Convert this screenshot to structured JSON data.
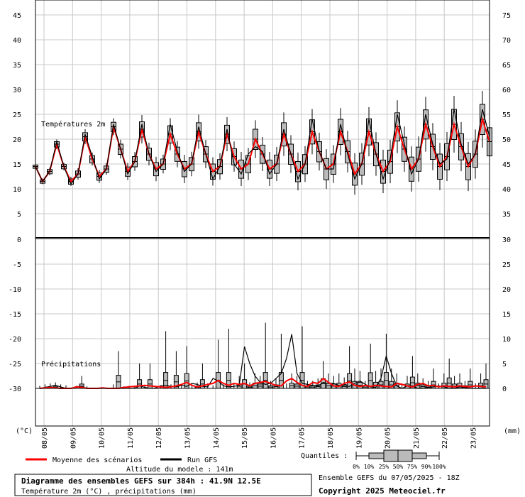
{
  "chart_data": [
    {
      "type": "box",
      "panel": "temperature",
      "label": "Températures 2m",
      "y_left_ticks": [
        5,
        10,
        15,
        20,
        25,
        30,
        35,
        40,
        45
      ],
      "y_right_ticks": [
        35,
        40,
        45,
        50,
        55,
        60,
        65,
        70,
        75
      ],
      "ylim_left": [
        0,
        47
      ],
      "mean_series_color": "#ff0000",
      "gfs_series_color": "#000000",
      "x_step_hours": 6,
      "mean": [
        14.5,
        11.5,
        13.5,
        19.0,
        14.5,
        11.5,
        13.0,
        20.5,
        16.0,
        12.5,
        14.0,
        22.5,
        18.0,
        13.5,
        15.5,
        22.0,
        17.0,
        14.0,
        15.0,
        21.0,
        17.0,
        14.0,
        15.0,
        21.5,
        17.0,
        13.5,
        14.5,
        21.0,
        16.5,
        14.0,
        15.0,
        20.0,
        17.0,
        14.0,
        15.0,
        21.0,
        17.0,
        13.5,
        15.0,
        21.5,
        17.5,
        14.0,
        15.0,
        21.5,
        17.5,
        13.0,
        15.0,
        21.5,
        17.0,
        13.5,
        15.5,
        22.5,
        18.0,
        14.0,
        16.0,
        23.0,
        18.5,
        14.5,
        16.5,
        23.0,
        18.5,
        14.5,
        17.0,
        24.0,
        19.5
      ],
      "gfs": [
        14.5,
        11.5,
        13.5,
        19.5,
        14.5,
        11.0,
        13.0,
        21.0,
        16.5,
        12.0,
        14.0,
        23.0,
        18.0,
        13.0,
        15.5,
        23.0,
        17.0,
        13.5,
        15.0,
        23.0,
        17.5,
        13.5,
        15.0,
        22.5,
        17.0,
        12.0,
        14.5,
        22.0,
        15.0,
        13.0,
        17.0,
        18.5,
        17.5,
        13.0,
        15.0,
        22.0,
        17.0,
        12.0,
        15.0,
        24.0,
        17.5,
        14.0,
        14.0,
        23.0,
        17.0,
        12.0,
        15.0,
        24.0,
        17.0,
        12.0,
        16.0,
        25.0,
        19.0,
        13.0,
        16.0,
        25.0,
        19.0,
        15.0,
        16.0,
        26.0,
        19.0,
        15.0,
        17.0,
        26.0,
        20.5
      ],
      "box_half_range": [
        0.3,
        0.3,
        0.4,
        0.5,
        0.4,
        0.5,
        0.6,
        0.8,
        0.7,
        0.7,
        0.6,
        0.9,
        1.0,
        0.9,
        1.0,
        1.5,
        1.2,
        1.3,
        1.0,
        1.7,
        1.4,
        1.5,
        1.3,
        1.8,
        1.5,
        1.5,
        1.4,
        1.8,
        1.6,
        1.8,
        1.7,
        2.0,
        1.8,
        1.8,
        1.8,
        2.3,
        2.0,
        2.0,
        1.9,
        2.4,
        2.0,
        2.1,
        2.0,
        2.5,
        2.2,
        2.2,
        2.2,
        2.6,
        2.3,
        2.3,
        2.3,
        2.8,
        2.4,
        2.4,
        2.4,
        2.9,
        2.5,
        2.5,
        2.6,
        3.0,
        2.6,
        2.6,
        2.6,
        3.0,
        2.8
      ]
    },
    {
      "type": "box",
      "panel": "precipitation",
      "label": "Précipitations",
      "y_left_ticks": [
        0,
        -5,
        -10,
        -15,
        -20,
        -25,
        -30
      ],
      "y_right_ticks": [
        30,
        25,
        20,
        15,
        10,
        5,
        0
      ],
      "ylim_right": [
        -7,
        30
      ],
      "mean_series_color": "#ff0000",
      "gfs_series_color": "#000000",
      "mean": [
        0.0,
        0.1,
        0.2,
        0.1,
        0.0,
        0.0,
        0.0,
        0.3,
        0.2,
        0.0,
        0.0,
        0.0,
        0.1,
        0.0,
        0.0,
        0.0,
        0.2,
        0.3,
        0.4,
        0.5,
        0.6,
        0.5,
        0.4,
        0.3,
        0.2,
        0.3,
        0.5,
        0.8,
        1.2,
        0.6,
        0.3,
        0.5,
        0.8,
        1.0,
        1.6,
        1.0,
        0.6,
        1.0,
        0.8,
        1.0,
        0.5,
        1.0,
        1.2,
        1.4,
        1.0,
        0.6,
        0.5,
        1.5,
        2.0,
        1.2,
        0.6,
        0.4,
        1.2,
        1.0,
        2.0,
        1.2,
        0.5,
        0.4,
        1.0,
        1.3,
        0.6,
        0.4,
        0.6,
        0.4,
        0.6,
        0.5,
        0.4,
        0.3,
        1.0,
        0.8,
        0.5,
        0.3,
        0.8,
        1.0,
        0.5,
        0.6,
        0.3,
        0.5,
        0.4,
        0.3,
        0.5,
        0.4,
        0.3,
        0.5,
        0.4,
        0.3
      ],
      "gfs": [
        0.0,
        0.2,
        0.4,
        0.6,
        0.3,
        0.0,
        0.0,
        0.4,
        0.3,
        0.0,
        0.0,
        0.0,
        0.0,
        0.0,
        0.0,
        0.0,
        0.0,
        0.0,
        0.0,
        0.5,
        0.2,
        0.0,
        0.0,
        0.5,
        0.6,
        0.4,
        0.3,
        0.6,
        0.4,
        1.0,
        0.8,
        0.4,
        0.3,
        2.0,
        1.5,
        0.5,
        0.3,
        0.4,
        0.6,
        8.4,
        5.0,
        2.5,
        1.2,
        0.8,
        1.0,
        2.0,
        3.0,
        6.0,
        10.9,
        3.0,
        1.0,
        0.8,
        0.6,
        0.5,
        1.2,
        1.0,
        1.0,
        0.6,
        0.5,
        0.4,
        1.0,
        1.5,
        0.8,
        0.3,
        0.2,
        2.0,
        6.5,
        3.0,
        0.5,
        0.0,
        0.5,
        0.5,
        0.0,
        0.0,
        0.2,
        0.3,
        0.5,
        0.3,
        0.0,
        0.0,
        0.3,
        0.2,
        0.0,
        0.0,
        0.0,
        0.0
      ],
      "max_whisker": [
        0.5,
        0.8,
        1.0,
        1.2,
        0.8,
        0.6,
        0.3,
        0.4,
        2.5,
        0.4,
        0.3,
        0.2,
        0.3,
        0.2,
        0.8,
        7.5,
        0.4,
        0.5,
        0.4,
        5.0,
        0.6,
        5.0,
        0.4,
        0.6,
        11.5,
        0.8,
        7.5,
        0.8,
        8.5,
        0.8,
        1.2,
        5.0,
        1.0,
        0.6,
        9.8,
        0.8,
        12.0,
        1.0,
        2.5,
        5.0,
        1.2,
        3.0,
        2.5,
        13.2,
        1.5,
        2.0,
        11.0,
        1.0,
        3.0,
        2.5,
        12.5,
        1.5,
        1.5,
        2.0,
        5.5,
        3.0,
        2.5,
        3.0,
        2.2,
        8.5,
        4.0,
        3.5,
        1.5,
        9.0,
        3.5,
        4.0,
        11.0,
        4.0,
        3.0,
        1.0,
        2.5,
        6.5,
        3.0,
        2.0,
        1.5,
        4.0,
        1.0,
        3.0,
        6.0,
        2.5,
        3.0,
        1.5,
        4.0,
        1.0,
        3.0,
        5.0
      ]
    }
  ],
  "x_labels": [
    "08/05",
    "09/05",
    "10/05",
    "11/05",
    "12/05",
    "13/05",
    "14/05",
    "15/05",
    "16/05",
    "17/05",
    "18/05",
    "19/05",
    "20/05",
    "21/05",
    "22/05",
    "23/05"
  ],
  "axis_left_unit": "(°C)",
  "axis_right_unit": "(mm)",
  "legend": {
    "mean_label": "Moyenne des scénarios",
    "gfs_label": "Run GFS",
    "altitude_label": "Altitude du modele : 141m",
    "quantiles_label": "Quantiles :",
    "quantile_ticks": [
      "0%",
      "10%",
      "25%",
      "50%",
      "75%",
      "90%",
      "100%"
    ]
  },
  "footer": {
    "title": "Diagramme des ensembles GEFS sur 384h : 41.9N 12.5E",
    "subtitle": "Température 2m (°C) , précipitations (mm)",
    "run": "Ensemble GEFS du 07/05/2025 - 18Z",
    "copyright": "Copyright 2025 Meteociel.fr"
  }
}
